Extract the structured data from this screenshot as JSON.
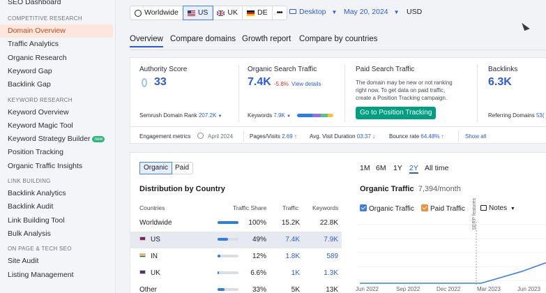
{
  "sidebar": {
    "top_item": "SEO Dashboard",
    "sections": [
      {
        "title": "COMPETITIVE RESEARCH",
        "items": [
          "Domain Overview",
          "Traffic Analytics",
          "Organic Research",
          "Keyword Gap",
          "Backlink Gap"
        ]
      },
      {
        "title": "KEYWORD RESEARCH",
        "items": [
          "Keyword Overview",
          "Keyword Magic Tool",
          "Keyword Strategy Builder",
          "Position Tracking",
          "Organic Traffic Insights"
        ]
      },
      {
        "title": "LINK BUILDING",
        "items": [
          "Backlink Analytics",
          "Backlink Audit",
          "Link Building Tool",
          "Bulk Analysis"
        ]
      },
      {
        "title": "ON PAGE & TECH SEO",
        "items": [
          "Site Audit",
          "Listing Management"
        ]
      }
    ],
    "new_badge": "new",
    "active_item": "Domain Overview"
  },
  "topbar": {
    "databases": [
      {
        "label": "Worldwide"
      },
      {
        "label": "US"
      },
      {
        "label": "UK"
      },
      {
        "label": "DE"
      }
    ],
    "more": "•••",
    "device": "Desktop",
    "date": "May 20, 2024",
    "currency": "USD"
  },
  "tabs": [
    "Overview",
    "Compare domains",
    "Growth report",
    "Compare by countries"
  ],
  "kpis": {
    "authority": {
      "label": "Authority Score",
      "value": "33",
      "sub_label": "Semrush Domain Rank",
      "sub_value": "207.2K"
    },
    "organic": {
      "label": "Organic Search Traffic",
      "value": "7.4K",
      "change": "-5.8%",
      "link": "View details",
      "keywords_label": "Keywords",
      "keywords_value": "7.9K"
    },
    "paid": {
      "label": "Paid Search Traffic",
      "note_lines": [
        "The domain may be new or not ranking",
        "right now. To get data on paid traffic,",
        "create a Position Tracking campaign."
      ],
      "button": "Go to Position Tracking"
    },
    "backlinks": {
      "label": "Backlinks",
      "value": "6.3K",
      "sub_label": "Referring Domains",
      "sub_value": "53("
    }
  },
  "engagement": {
    "label": "Engagement metrics",
    "date": "April 2024",
    "pages_label": "Pages/Visits",
    "pages_value": "2.69 ↑",
    "duration_label": "Avg. Visit Duration",
    "duration_value": "03:37 ↓",
    "bounce_label": "Bounce rate",
    "bounce_value": "64.48% ↑",
    "show_all": "Show all"
  },
  "distribution": {
    "toggle": [
      "Organic",
      "Paid"
    ],
    "title": "Distribution by Country",
    "headers": [
      "Countries",
      "Traffic Share",
      "Traffic",
      "Keywords"
    ],
    "rows": [
      {
        "country": "Worldwide",
        "share": "100%",
        "share_pct": 100,
        "traffic": "15.2K",
        "keywords": "22.8K",
        "selected": false,
        "blue": false
      },
      {
        "country": "US",
        "share": "49%",
        "share_pct": 49,
        "traffic": "7.4K",
        "keywords": "7.9K",
        "selected": true,
        "blue": true
      },
      {
        "country": "IN",
        "share": "12%",
        "share_pct": 12,
        "traffic": "1.8K",
        "keywords": "589",
        "selected": false,
        "blue": true
      },
      {
        "country": "UK",
        "share": "6.6%",
        "share_pct": 6.6,
        "traffic": "1K",
        "keywords": "1.3K",
        "selected": false,
        "blue": true
      },
      {
        "country": "Other",
        "share": "33%",
        "share_pct": 33,
        "traffic": "5K",
        "keywords": "13K",
        "selected": false,
        "blue": false
      }
    ]
  },
  "organic_chart": {
    "ranges": [
      "1M",
      "6M",
      "1Y",
      "2Y",
      "All time"
    ],
    "active_range": "2Y",
    "title": "Organic Traffic",
    "value": "7,394/month",
    "legend": [
      {
        "label": "Organic Traffic",
        "color": "#3d7fe0"
      },
      {
        "label": "Paid Traffic",
        "color": "#f0913a"
      }
    ],
    "notes": "Notes",
    "annotation": "SERP features"
  },
  "chart_data": {
    "type": "line",
    "x": [
      "Jun 2022",
      "Sep 2022",
      "Dec 2022",
      "Mar 2023",
      "Jun 2023"
    ],
    "series": [
      {
        "name": "Organic Traffic",
        "values": [
          0,
          0,
          0,
          0,
          200
        ]
      }
    ]
  }
}
